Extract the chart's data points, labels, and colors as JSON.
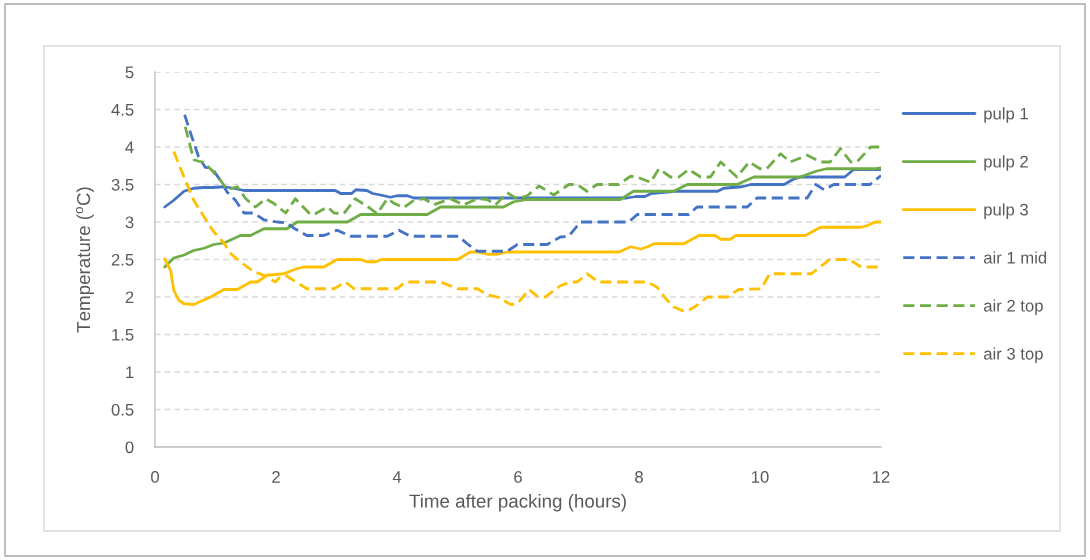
{
  "chart_data": {
    "type": "line",
    "xlabel": "Time after packing (hours)",
    "ylabel": "Temperature ($^{o}$C)",
    "xlim": [
      0,
      12
    ],
    "xticks": [
      0,
      2,
      4,
      6,
      8,
      10,
      12
    ],
    "ylim": [
      0,
      5
    ],
    "yticks": [
      0,
      0.5,
      1,
      1.5,
      2,
      2.5,
      3,
      3.5,
      4,
      4.5,
      5
    ],
    "grid": "y",
    "legend": "right",
    "series": [
      {
        "name": "pulp 1",
        "color": "#4472c4",
        "line_style": "solid",
        "x": [
          0.16,
          0.31,
          0.48,
          0.64,
          0.81,
          0.95,
          1.14,
          1.3,
          1.47,
          2.5,
          2.98,
          3.07,
          3.25,
          3.32,
          3.5,
          3.6,
          3.73,
          3.89,
          4.0,
          4.17,
          4.28,
          7.8,
          7.95,
          8.1,
          8.2,
          8.6,
          9.3,
          9.4,
          9.7,
          9.85,
          10.4,
          10.55,
          10.67,
          11.4,
          11.55,
          12.0
        ],
        "values": [
          3.2,
          3.29,
          3.41,
          3.45,
          3.46,
          3.46,
          3.47,
          3.45,
          3.42,
          3.42,
          3.42,
          3.38,
          3.38,
          3.43,
          3.42,
          3.38,
          3.36,
          3.33,
          3.35,
          3.35,
          3.32,
          3.32,
          3.34,
          3.34,
          3.38,
          3.41,
          3.41,
          3.45,
          3.47,
          3.5,
          3.5,
          3.57,
          3.6,
          3.6,
          3.7,
          3.7
        ]
      },
      {
        "name": "pulp 2",
        "color": "#70ad47",
        "line_style": "solid",
        "x": [
          0.16,
          0.31,
          0.48,
          0.64,
          0.81,
          0.97,
          1.14,
          1.25,
          1.41,
          1.58,
          1.8,
          2.18,
          2.35,
          3.18,
          3.4,
          4.5,
          4.72,
          5.76,
          5.93,
          6.15,
          7.69,
          7.91,
          8.57,
          8.8,
          9.62,
          9.9,
          10.67,
          10.83,
          10.94,
          11.1,
          11.9,
          12.0
        ],
        "values": [
          2.4,
          2.52,
          2.56,
          2.62,
          2.65,
          2.7,
          2.72,
          2.76,
          2.82,
          2.82,
          2.91,
          2.91,
          3.0,
          3.0,
          3.1,
          3.1,
          3.2,
          3.2,
          3.27,
          3.3,
          3.3,
          3.41,
          3.41,
          3.5,
          3.5,
          3.6,
          3.6,
          3.65,
          3.68,
          3.71,
          3.71,
          3.72
        ]
      },
      {
        "name": "pulp 3",
        "color": "#ffc000",
        "line_style": "solid",
        "x": [
          0.16,
          0.26,
          0.31,
          0.39,
          0.48,
          0.64,
          0.75,
          0.92,
          1.14,
          1.36,
          1.58,
          1.69,
          1.85,
          2.13,
          2.35,
          2.46,
          2.79,
          3.01,
          3.4,
          3.5,
          3.65,
          3.75,
          5.0,
          5.21,
          5.33,
          5.49,
          5.66,
          5.82,
          7.67,
          7.86,
          8.03,
          8.14,
          8.25,
          8.74,
          8.99,
          9.26,
          9.35,
          9.51,
          9.6,
          10.75,
          11.0,
          11.66,
          11.77,
          11.9,
          12.0
        ],
        "values": [
          2.51,
          2.35,
          2.09,
          1.96,
          1.91,
          1.9,
          1.94,
          2.0,
          2.1,
          2.1,
          2.2,
          2.2,
          2.29,
          2.31,
          2.38,
          2.4,
          2.4,
          2.5,
          2.5,
          2.47,
          2.47,
          2.5,
          2.5,
          2.6,
          2.6,
          2.57,
          2.57,
          2.6,
          2.6,
          2.67,
          2.64,
          2.67,
          2.71,
          2.71,
          2.82,
          2.82,
          2.77,
          2.77,
          2.82,
          2.82,
          2.93,
          2.93,
          2.95,
          3.0,
          3.0
        ]
      },
      {
        "name": "air 1 mid",
        "color": "#4472c4",
        "line_style": "dashed",
        "x": [
          0.49,
          0.59,
          0.72,
          0.83,
          0.94,
          1.11,
          1.19,
          1.33,
          1.47,
          1.63,
          1.8,
          2.02,
          2.18,
          2.29,
          2.51,
          2.79,
          3.01,
          3.23,
          3.84,
          4.03,
          4.22,
          5.02,
          5.16,
          5.33,
          5.82,
          5.99,
          6.48,
          6.7,
          6.84,
          7.03,
          7.83,
          7.97,
          8.82,
          8.96,
          9.79,
          9.95,
          10.78,
          10.92,
          11.06,
          11.22,
          11.82,
          12.0
        ],
        "values": [
          4.43,
          4.18,
          3.87,
          3.73,
          3.72,
          3.52,
          3.4,
          3.29,
          3.12,
          3.12,
          3.03,
          3.0,
          2.99,
          2.92,
          2.82,
          2.82,
          2.89,
          2.81,
          2.81,
          2.89,
          2.81,
          2.81,
          2.71,
          2.61,
          2.61,
          2.7,
          2.7,
          2.8,
          2.81,
          3.0,
          3.0,
          3.1,
          3.1,
          3.2,
          3.2,
          3.32,
          3.32,
          3.5,
          3.43,
          3.5,
          3.5,
          3.62
        ]
      },
      {
        "name": "air 2 top",
        "color": "#70ad47",
        "line_style": "dashed",
        "x": [
          0.5,
          0.64,
          0.72,
          0.8,
          0.94,
          1.08,
          1.19,
          1.36,
          1.5,
          1.66,
          1.83,
          1.96,
          2.16,
          2.32,
          2.57,
          2.65,
          2.85,
          2.96,
          3.12,
          3.31,
          3.56,
          3.67,
          3.84,
          3.95,
          4.11,
          4.28,
          4.45,
          4.61,
          4.88,
          5.1,
          5.33,
          5.49,
          5.63,
          5.82,
          5.99,
          6.15,
          6.35,
          6.59,
          6.84,
          6.98,
          7.14,
          7.31,
          7.67,
          7.86,
          7.97,
          8.19,
          8.33,
          8.52,
          8.66,
          8.82,
          9.02,
          9.18,
          9.35,
          9.62,
          9.82,
          10.0,
          10.11,
          10.34,
          10.5,
          10.78,
          11.0,
          11.16,
          11.33,
          11.5,
          11.6,
          11.83,
          12.0
        ],
        "values": [
          4.27,
          3.83,
          3.81,
          3.8,
          3.69,
          3.56,
          3.43,
          3.47,
          3.31,
          3.2,
          3.31,
          3.25,
          3.12,
          3.31,
          3.1,
          3.11,
          3.2,
          3.12,
          3.11,
          3.31,
          3.18,
          3.11,
          3.31,
          3.25,
          3.19,
          3.29,
          3.31,
          3.23,
          3.31,
          3.23,
          3.31,
          3.3,
          3.23,
          3.39,
          3.31,
          3.35,
          3.48,
          3.36,
          3.5,
          3.5,
          3.41,
          3.5,
          3.5,
          3.61,
          3.6,
          3.53,
          3.71,
          3.6,
          3.6,
          3.7,
          3.6,
          3.6,
          3.8,
          3.6,
          3.8,
          3.71,
          3.71,
          3.91,
          3.8,
          3.89,
          3.8,
          3.8,
          3.98,
          3.8,
          3.8,
          4.0,
          4.0
        ]
      },
      {
        "name": "air 3 top",
        "color": "#ffc000",
        "line_style": "dashed",
        "x": [
          0.31,
          0.48,
          0.64,
          0.81,
          0.97,
          1.14,
          1.25,
          1.41,
          1.63,
          1.8,
          1.99,
          2.07,
          2.18,
          2.35,
          2.51,
          2.96,
          3.15,
          3.29,
          4.0,
          4.14,
          4.72,
          5.0,
          5.33,
          5.49,
          5.66,
          5.88,
          5.99,
          6.18,
          6.32,
          6.45,
          6.7,
          6.87,
          6.98,
          7.14,
          7.33,
          8.14,
          8.3,
          8.44,
          8.57,
          8.71,
          8.82,
          8.96,
          9.13,
          9.46,
          9.65,
          10.02,
          10.16,
          10.85,
          11.15,
          11.48,
          11.67,
          12.0
        ],
        "values": [
          3.94,
          3.6,
          3.29,
          3.07,
          2.87,
          2.72,
          2.58,
          2.47,
          2.34,
          2.29,
          2.2,
          2.27,
          2.28,
          2.19,
          2.11,
          2.11,
          2.2,
          2.11,
          2.11,
          2.2,
          2.2,
          2.11,
          2.11,
          2.03,
          2.0,
          1.9,
          1.91,
          2.1,
          2.01,
          2.0,
          2.15,
          2.2,
          2.2,
          2.31,
          2.2,
          2.2,
          2.13,
          1.98,
          1.87,
          1.82,
          1.82,
          1.89,
          2.0,
          2.0,
          2.1,
          2.11,
          2.31,
          2.31,
          2.5,
          2.5,
          2.4,
          2.4
        ]
      }
    ]
  }
}
